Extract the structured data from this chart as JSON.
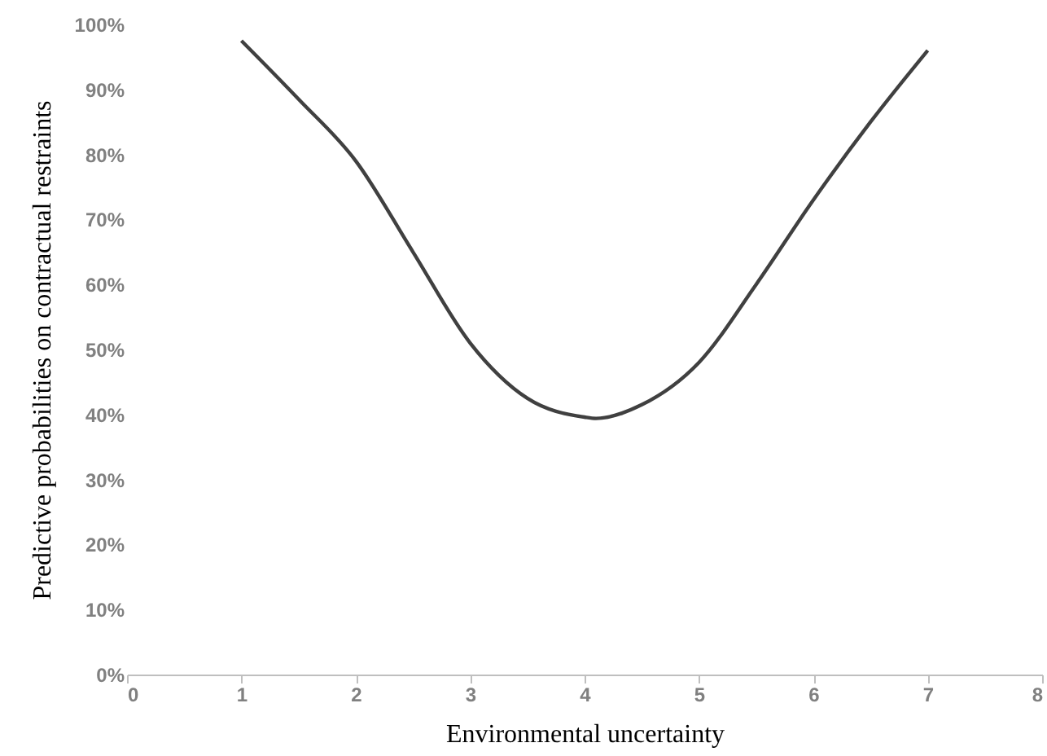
{
  "chart_data": {
    "type": "line",
    "xlabel": "Environmental uncertainty",
    "ylabel": "Predictive probabilities on contractual restraints",
    "x": [
      1,
      1.5,
      2,
      2.5,
      3,
      3.5,
      4,
      4.1,
      4.5,
      5,
      5.5,
      6,
      6.5,
      7
    ],
    "series": [
      {
        "color": "#404040",
        "values": [
          97.5,
          88.5,
          79,
          65,
          51,
          42.5,
          39.6,
          39.4,
          41.5,
          48,
          60,
          73,
          85,
          96
        ]
      }
    ],
    "xlim": [
      0,
      8
    ],
    "xticks": [
      0,
      1,
      2,
      3,
      4,
      5,
      6,
      7,
      8
    ],
    "ylim": [
      0,
      100
    ],
    "yticks": [
      {
        "value": 0,
        "label": "0%"
      },
      {
        "value": 10,
        "label": "10%"
      },
      {
        "value": 20,
        "label": "20%"
      },
      {
        "value": 30,
        "label": "30%"
      },
      {
        "value": 40,
        "label": "40%"
      },
      {
        "value": 50,
        "label": "50%"
      },
      {
        "value": 60,
        "label": "60%"
      },
      {
        "value": 70,
        "label": "70%"
      },
      {
        "value": 80,
        "label": "80%"
      },
      {
        "value": 90,
        "label": "90%"
      },
      {
        "value": 100,
        "label": "100%"
      }
    ],
    "grid": false,
    "marker": "none",
    "line_style": "solid"
  }
}
